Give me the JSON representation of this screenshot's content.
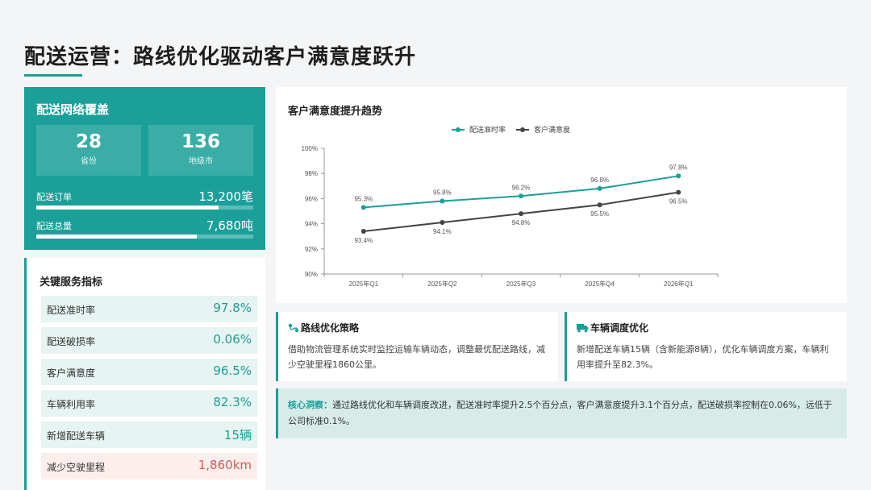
{
  "page": {
    "title": "配送运营：路线优化驱动客户满意度跃升"
  },
  "coverage": {
    "title": "配送网络覆盖",
    "stats": [
      {
        "value": "28",
        "unit": "省份"
      },
      {
        "value": "136",
        "unit": "地级市"
      }
    ],
    "metrics": [
      {
        "label": "配送订单",
        "value": "13,200笔",
        "fill": 0.84
      },
      {
        "label": "配送总量",
        "value": "7,680吨",
        "fill": 0.74
      }
    ]
  },
  "indicators": {
    "title": "关键服务指标",
    "rows": [
      {
        "label": "配送准时率",
        "value": "97.8%"
      },
      {
        "label": "配送破损率",
        "value": "0.06%"
      },
      {
        "label": "客户满意度",
        "value": "96.5%"
      },
      {
        "label": "车辆利用率",
        "value": "82.3%"
      },
      {
        "label": "新增配送车辆",
        "value": "15辆"
      },
      {
        "label": "减少空驶里程",
        "value": "1,860km"
      }
    ]
  },
  "chart": {
    "title": "客户满意度提升趋势"
  },
  "chart_data": {
    "type": "line",
    "title": "",
    "categories": [
      "2025年Q1",
      "2025年Q2",
      "2025年Q3",
      "2025年Q4",
      "2026年Q1"
    ],
    "series": [
      {
        "name": "配送准时率",
        "values": [
          95.3,
          95.8,
          96.2,
          96.8,
          97.8
        ],
        "labels": [
          "95.3%",
          "95.8%",
          "96.2%",
          "96.8%",
          "97.8%"
        ],
        "color": "#1aa098"
      },
      {
        "name": "客户满意度",
        "values": [
          93.4,
          94.1,
          94.8,
          95.5,
          96.5
        ],
        "labels": [
          "93.4%",
          "94.1%",
          "94.8%",
          "95.5%",
          "96.5%"
        ],
        "color": "#444444"
      }
    ],
    "ylim": [
      90,
      100
    ],
    "yticks": [
      "90%",
      "92%",
      "94%",
      "96%",
      "98%",
      "100%"
    ],
    "legend": "top-center",
    "grid": false
  },
  "strategies": [
    {
      "icon": "route-icon",
      "title": "路线优化策略",
      "body": "借助物流管理系统实时监控运输车辆动态，调整最优配送路线，减少空驶里程1860公里。"
    },
    {
      "icon": "truck-icon",
      "title": "车辆调度优化",
      "body": "新增配送车辆15辆（含新能源8辆），优化车辆调度方案，车辆利用率提升至82.3%。"
    }
  ],
  "insight": {
    "label": "核心洞察：",
    "text": "通过路线优化和车辆调度改进，配送准时率提升2.5个百分点，客户满意度提升3.1个百分点，配送破损率控制在0.06%，远低于公司标准0.1%。"
  },
  "colors": {
    "accent": "#1aa098",
    "warn": "#d15b56",
    "dark_line": "#444444"
  }
}
